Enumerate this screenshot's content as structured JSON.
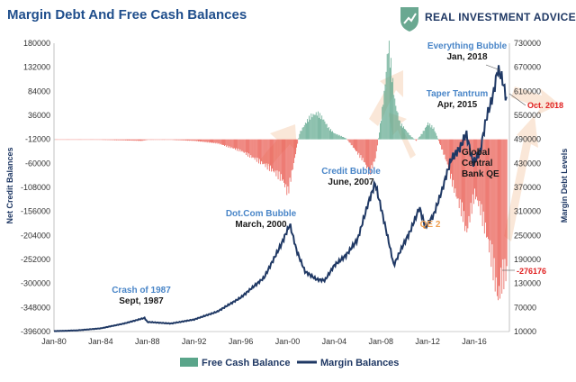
{
  "header": {
    "title": "Margin Debt And Free Cash Balances",
    "brand": "REAL INVESTMENT ADVICE",
    "brand_icon": "shield-chart-icon"
  },
  "colors": {
    "positive_bar": "#5aa58a",
    "negative_bar": "#e8544a",
    "margin_line": "#1f3864",
    "arrow": "#f5c9a8",
    "title": "#1f4e8c"
  },
  "chart_data": {
    "type": "bar+line",
    "x_tick_labels": [
      "Jan-80",
      "Jan-84",
      "Jan-88",
      "Jan-92",
      "Jan-96",
      "Jan-00",
      "Jan-04",
      "Jan-08",
      "Jan-12",
      "Jan-16"
    ],
    "x_range": [
      1980.0,
      2019.0
    ],
    "y_left": {
      "label": "Net Credit Balances",
      "range": [
        -396000,
        180000
      ],
      "ticks": [
        180000,
        132000,
        84000,
        36000,
        -12000,
        -60000,
        -108000,
        -156000,
        -204000,
        -252000,
        -300000,
        -348000,
        -396000
      ]
    },
    "y_right": {
      "label": "Margin Debt Levels",
      "range": [
        10000,
        730000
      ],
      "ticks": [
        730000,
        670000,
        610000,
        550000,
        490000,
        430000,
        370000,
        310000,
        250000,
        190000,
        130000,
        70000,
        10000
      ]
    },
    "series": [
      {
        "name": "Free Cash Balance",
        "type": "bar",
        "axis": "left",
        "points": [
          [
            1980.0,
            -12000
          ],
          [
            1982.0,
            -12500
          ],
          [
            1984.0,
            -13000
          ],
          [
            1986.0,
            -14000
          ],
          [
            1987.5,
            -15000
          ],
          [
            1988.0,
            -13000
          ],
          [
            1990.0,
            -13000
          ],
          [
            1992.0,
            -15000
          ],
          [
            1994.0,
            -20000
          ],
          [
            1996.0,
            -35000
          ],
          [
            1997.5,
            -55000
          ],
          [
            1998.5,
            -70000
          ],
          [
            1999.5,
            -90000
          ],
          [
            2000.0,
            -118000
          ],
          [
            2000.5,
            -60000
          ],
          [
            2001.0,
            0
          ],
          [
            2001.5,
            20000
          ],
          [
            2002.0,
            35000
          ],
          [
            2002.5,
            40000
          ],
          [
            2003.0,
            30000
          ],
          [
            2003.5,
            10000
          ],
          [
            2004.0,
            0
          ],
          [
            2004.5,
            -5000
          ],
          [
            2005.0,
            -10000
          ],
          [
            2005.5,
            -25000
          ],
          [
            2006.0,
            -40000
          ],
          [
            2006.5,
            -55000
          ],
          [
            2007.0,
            -80000
          ],
          [
            2007.5,
            -50000
          ],
          [
            2008.0,
            30000
          ],
          [
            2008.3,
            90000
          ],
          [
            2008.6,
            180000
          ],
          [
            2008.9,
            120000
          ],
          [
            2009.2,
            60000
          ],
          [
            2009.6,
            20000
          ],
          [
            2010.0,
            10000
          ],
          [
            2010.5,
            -5000
          ],
          [
            2011.0,
            -15000
          ],
          [
            2011.5,
            0
          ],
          [
            2012.0,
            20000
          ],
          [
            2012.5,
            10000
          ],
          [
            2013.0,
            -20000
          ],
          [
            2013.5,
            -50000
          ],
          [
            2014.0,
            -90000
          ],
          [
            2014.5,
            -130000
          ],
          [
            2015.0,
            -160000
          ],
          [
            2015.3,
            -200000
          ],
          [
            2015.7,
            -150000
          ],
          [
            2016.0,
            -120000
          ],
          [
            2016.5,
            -150000
          ],
          [
            2017.0,
            -200000
          ],
          [
            2017.5,
            -250000
          ],
          [
            2017.8,
            -300000
          ],
          [
            2018.0,
            -330000
          ],
          [
            2018.3,
            -290000
          ],
          [
            2018.6,
            -276176
          ]
        ]
      },
      {
        "name": "Margin Balances",
        "type": "line",
        "axis": "right",
        "points": [
          [
            1980.0,
            11000
          ],
          [
            1982.0,
            13000
          ],
          [
            1984.0,
            18000
          ],
          [
            1986.0,
            30000
          ],
          [
            1987.75,
            44000
          ],
          [
            1988.0,
            34000
          ],
          [
            1990.0,
            30000
          ],
          [
            1992.0,
            40000
          ],
          [
            1994.0,
            60000
          ],
          [
            1996.0,
            95000
          ],
          [
            1998.0,
            145000
          ],
          [
            1999.5,
            230000
          ],
          [
            2000.2,
            278000
          ],
          [
            2000.8,
            210000
          ],
          [
            2001.5,
            160000
          ],
          [
            2002.5,
            140000
          ],
          [
            2003.2,
            138000
          ],
          [
            2004.0,
            175000
          ],
          [
            2005.0,
            200000
          ],
          [
            2006.0,
            240000
          ],
          [
            2006.8,
            320000
          ],
          [
            2007.5,
            381000
          ],
          [
            2008.0,
            320000
          ],
          [
            2008.7,
            230000
          ],
          [
            2009.1,
            175000
          ],
          [
            2009.8,
            220000
          ],
          [
            2010.5,
            260000
          ],
          [
            2011.3,
            320000
          ],
          [
            2011.8,
            270000
          ],
          [
            2012.5,
            300000
          ],
          [
            2013.2,
            360000
          ],
          [
            2014.0,
            440000
          ],
          [
            2014.8,
            470000
          ],
          [
            2015.3,
            505000
          ],
          [
            2015.9,
            430000
          ],
          [
            2016.5,
            460000
          ],
          [
            2017.0,
            540000
          ],
          [
            2017.6,
            600000
          ],
          [
            2018.0,
            665000
          ],
          [
            2018.4,
            640000
          ],
          [
            2018.75,
            590000
          ]
        ]
      }
    ],
    "annotations": [
      {
        "lines": [
          "Crash of 1987",
          "Sept, 1987"
        ]
      },
      {
        "lines": [
          "Dot.Com Bubble",
          "March, 2000"
        ]
      },
      {
        "lines": [
          "Credit Bubble",
          "June, 2007"
        ]
      },
      {
        "lines": [
          "QE 2"
        ]
      },
      {
        "lines": [
          "Taper Tantrum",
          "Apr, 2015"
        ]
      },
      {
        "lines": [
          "Global",
          "Central",
          "Bank QE"
        ]
      },
      {
        "lines": [
          "Everything Bubble",
          "Jan, 2018"
        ]
      },
      {
        "lines": [
          "Oct. 2018"
        ]
      },
      {
        "lines": [
          "-276176"
        ]
      }
    ],
    "legend": {
      "placement": "bottom",
      "items": [
        {
          "label": "Free Cash Balance",
          "swatch": "bar"
        },
        {
          "label": "Margin Balances",
          "swatch": "line"
        }
      ]
    },
    "grid": false
  }
}
